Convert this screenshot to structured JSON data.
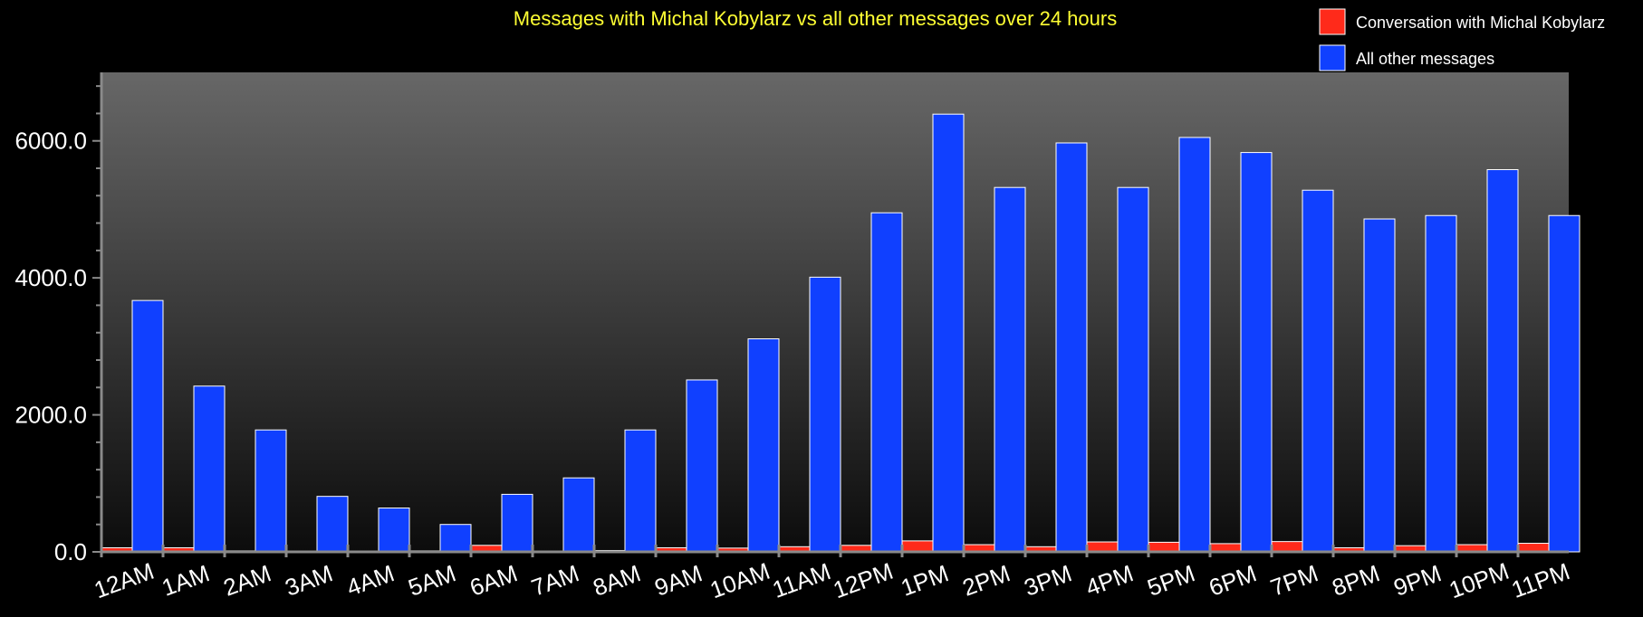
{
  "chart_data": {
    "type": "bar",
    "title": "Messages with Michal Kobylarz vs all other messages over 24 hours",
    "xlabel": "",
    "ylabel": "",
    "ylim": [
      0,
      7000
    ],
    "yticks": [
      "0.0",
      "2000.0",
      "4000.0",
      "6000.0"
    ],
    "ytick_values": [
      0,
      2000,
      4000,
      6000
    ],
    "categories": [
      "12AM",
      "1AM",
      "2AM",
      "3AM",
      "4AM",
      "5AM",
      "6AM",
      "7AM",
      "8AM",
      "9AM",
      "10AM",
      "11AM",
      "12PM",
      "1PM",
      "2PM",
      "3PM",
      "4PM",
      "5PM",
      "6PM",
      "7PM",
      "8PM",
      "9PM",
      "10PM",
      "11PM"
    ],
    "series": [
      {
        "name": "Conversation with Michal Kobylarz",
        "color": "#ff2a1a",
        "values": [
          60,
          60,
          15,
          10,
          8,
          15,
          95,
          10,
          20,
          60,
          55,
          75,
          95,
          160,
          105,
          75,
          145,
          140,
          120,
          150,
          60,
          90,
          105,
          125
        ]
      },
      {
        "name": "All other messages",
        "color": "#1040ff",
        "values": [
          3670,
          2420,
          1780,
          810,
          640,
          400,
          840,
          1080,
          1780,
          2510,
          3110,
          4010,
          4950,
          6390,
          5320,
          5970,
          5320,
          6050,
          5830,
          5280,
          4860,
          4910,
          5580,
          4910
        ]
      }
    ],
    "legend_position": "top-right",
    "grid": false
  }
}
